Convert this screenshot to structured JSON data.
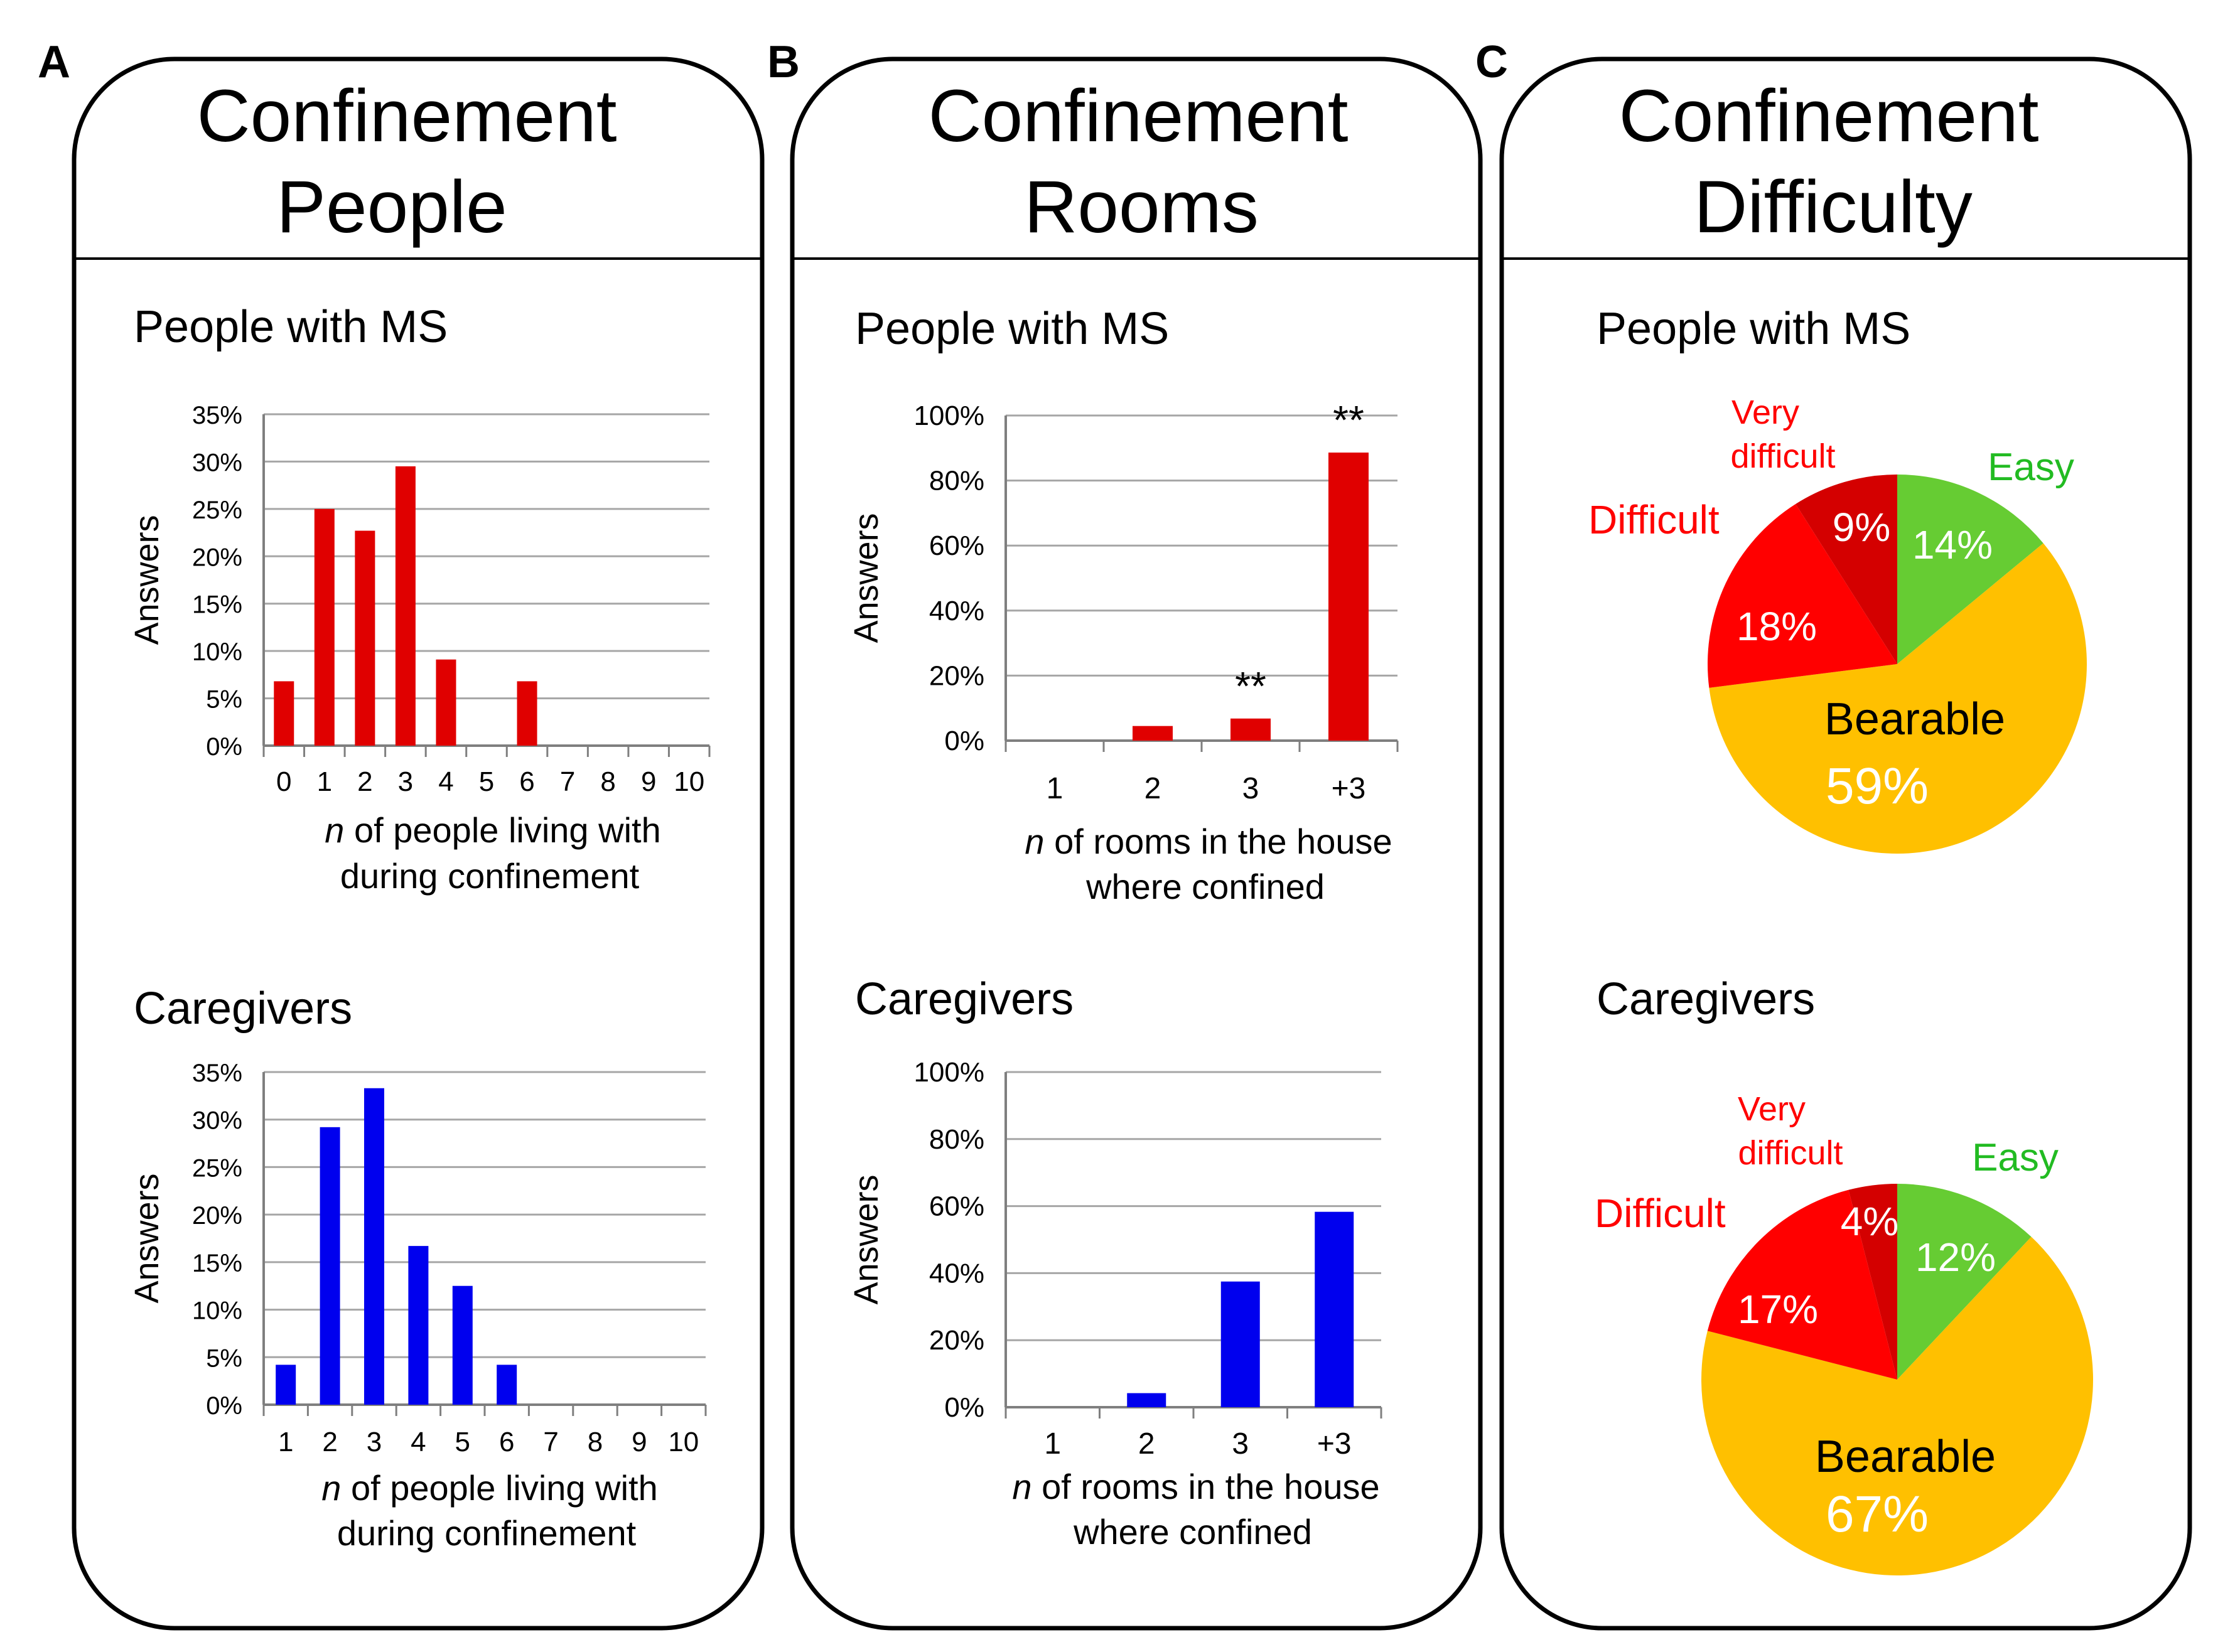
{
  "panels": [
    {
      "letter": "A",
      "title": [
        "Confinement",
        "People"
      ]
    },
    {
      "letter": "B",
      "title": [
        "Confinement",
        "Rooms"
      ]
    },
    {
      "letter": "C",
      "title": [
        "Confinement",
        "Difficulty"
      ]
    }
  ],
  "colors": {
    "ms": "#e00000",
    "caregivers": "#0000ee",
    "easy": "#66cc33",
    "bearable": "#ffc000",
    "difficult": "#ff0000",
    "very_difficult": "#d40000",
    "easy_label": "#22bb22",
    "red_label": "#ff0000",
    "grid": "#a6a6a6"
  },
  "chart_data": [
    {
      "id": "people-ms",
      "panel": "A",
      "type": "bar",
      "title": "People with MS",
      "ylabel": "Answers",
      "xlabel_parts": [
        "n",
        " of people living with"
      ],
      "xlabel_line2": "during confinement",
      "categories": [
        "0",
        "1",
        "2",
        "3",
        "4",
        "5",
        "6",
        "7",
        "8",
        "9",
        "10"
      ],
      "values": [
        6.8,
        25,
        22.7,
        29.5,
        9.1,
        0,
        6.8,
        0,
        0,
        0,
        0
      ],
      "ylim": [
        0,
        35
      ],
      "yticks": [
        "0%",
        "5%",
        "10%",
        "15%",
        "20%",
        "25%",
        "30%",
        "35%"
      ],
      "color_key": "ms"
    },
    {
      "id": "people-caregivers",
      "panel": "A",
      "type": "bar",
      "title": "Caregivers",
      "ylabel": "Answers",
      "xlabel_parts": [
        "n",
        " of people living with"
      ],
      "xlabel_line2": "during confinement",
      "categories": [
        "1",
        "2",
        "3",
        "4",
        "5",
        "6",
        "7",
        "8",
        "9",
        "10"
      ],
      "values": [
        4.2,
        29.2,
        33.3,
        16.7,
        12.5,
        4.2,
        0,
        0,
        0,
        0
      ],
      "ylim": [
        0,
        35
      ],
      "yticks": [
        "0%",
        "5%",
        "10%",
        "15%",
        "20%",
        "25%",
        "30%",
        "35%"
      ],
      "color_key": "caregivers"
    },
    {
      "id": "rooms-ms",
      "panel": "B",
      "type": "bar",
      "title": "People with MS",
      "ylabel": "Answers",
      "xlabel_parts": [
        "n",
        " of rooms in the house"
      ],
      "xlabel_line2": "where confined",
      "categories": [
        "1",
        "2",
        "3",
        "+3"
      ],
      "values": [
        0,
        4.5,
        6.8,
        88.6
      ],
      "ylim": [
        0,
        100
      ],
      "yticks": [
        "0%",
        "20%",
        "40%",
        "60%",
        "80%",
        "100%"
      ],
      "annotations": [
        {
          "category": "3",
          "text": "**"
        },
        {
          "category": "+3",
          "text": "**"
        }
      ],
      "color_key": "ms"
    },
    {
      "id": "rooms-caregivers",
      "panel": "B",
      "type": "bar",
      "title": "Caregivers",
      "ylabel": "Answers",
      "xlabel_parts": [
        "n",
        " of rooms in the house"
      ],
      "xlabel_line2": "where confined",
      "categories": [
        "1",
        "2",
        "3",
        "+3"
      ],
      "values": [
        0,
        4.2,
        37.5,
        58.3
      ],
      "ylim": [
        0,
        100
      ],
      "yticks": [
        "0%",
        "20%",
        "40%",
        "60%",
        "80%",
        "100%"
      ],
      "color_key": "caregivers"
    },
    {
      "id": "difficulty-ms",
      "panel": "C",
      "type": "pie",
      "title": "People with MS",
      "slices": [
        {
          "name": "Easy",
          "value": 14,
          "label": "14%",
          "color_key": "easy"
        },
        {
          "name": "Bearable",
          "value": 59,
          "label": "59%",
          "color_key": "bearable"
        },
        {
          "name": "Difficult",
          "value": 18,
          "label": "18%",
          "color_key": "difficult"
        },
        {
          "name": "Very difficult",
          "value": 9,
          "label": "9%",
          "color_key": "very_difficult"
        }
      ],
      "legend_labels": {
        "easy": "Easy",
        "bearable": "Bearable",
        "difficult": "Difficult",
        "very_difficult": [
          "Very",
          "difficult"
        ]
      }
    },
    {
      "id": "difficulty-caregivers",
      "panel": "C",
      "type": "pie",
      "title": "Caregivers",
      "slices": [
        {
          "name": "Easy",
          "value": 12,
          "label": "12%",
          "color_key": "easy"
        },
        {
          "name": "Bearable",
          "value": 67,
          "label": "67%",
          "color_key": "bearable"
        },
        {
          "name": "Difficult",
          "value": 17,
          "label": "17%",
          "color_key": "difficult"
        },
        {
          "name": "Very difficult",
          "value": 4,
          "label": "4%",
          "color_key": "very_difficult"
        }
      ],
      "legend_labels": {
        "easy": "Easy",
        "bearable": "Bearable",
        "difficult": "Difficult",
        "very_difficult": [
          "Very",
          "difficult"
        ]
      }
    }
  ]
}
